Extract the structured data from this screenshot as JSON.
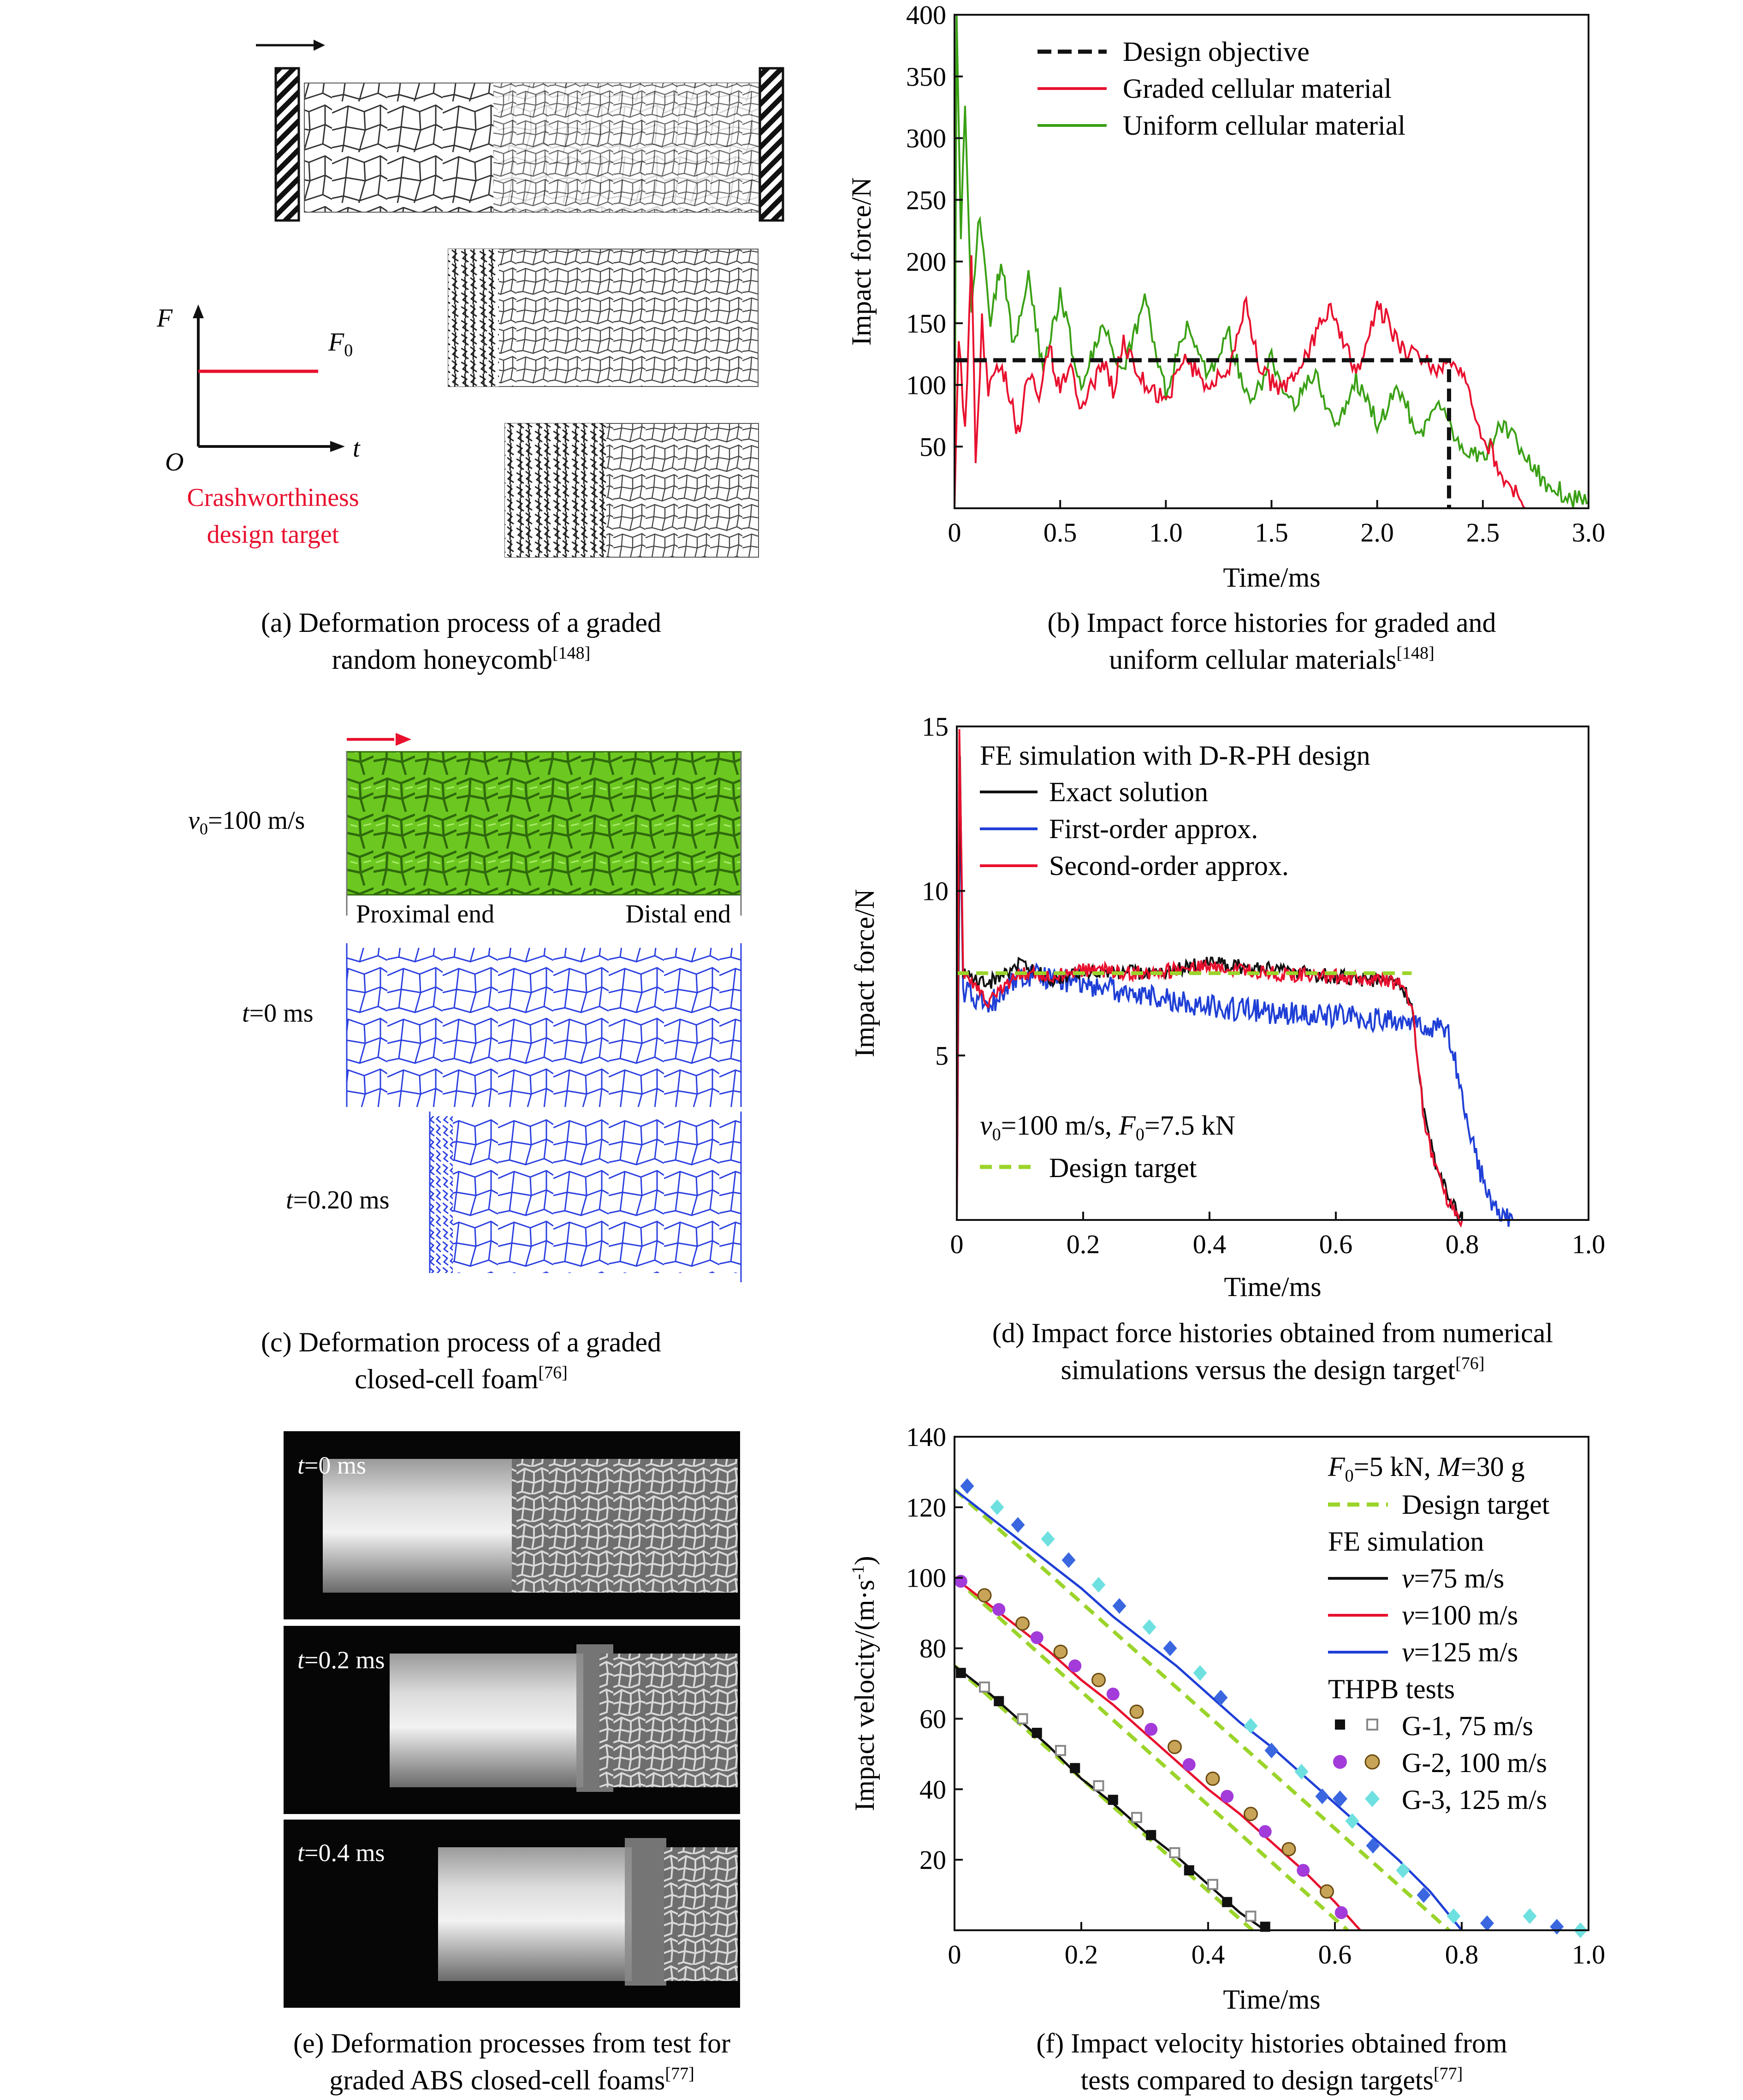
{
  "colors": {
    "red": "#e8102e",
    "green": "#3aa015",
    "blue": "#1f3fd6",
    "black": "#111111",
    "lime": "#9bd42a",
    "cyan": "#6fe0e0",
    "violet": "#a23bd9",
    "royal": "#3a67e0",
    "foam_green": "#6cc820",
    "cell_blue": "#2b3fe0"
  },
  "panel_a": {
    "axis_f": "F",
    "axis_o": "O",
    "axis_t": "t",
    "f0_label": "F",
    "f0_sub": "0",
    "target_line1": "Crashworthiness",
    "target_line2": "design target",
    "caption_line1": "(a) Deformation process of a graded",
    "caption_line2": "random honeycomb",
    "caption_ref": "[148]"
  },
  "panel_c": {
    "v0_label": "=100 m/s",
    "proximal": "Proximal end",
    "distal": "Distal end",
    "t0": "=0 ms",
    "t020": "=0.20 ms",
    "caption_line1": "(c) Deformation process of a graded",
    "caption_line2": "closed-cell foam",
    "caption_ref": "[76]"
  },
  "panel_e": {
    "frames": [
      "=0 ms",
      "=0.2 ms",
      "=0.4 ms"
    ],
    "caption_line1": "(e) Deformation processes  from test for",
    "caption_line2": "graded ABS closed-cell foams",
    "caption_ref": "[77]"
  },
  "chart_data": [
    {
      "id": "b",
      "type": "line",
      "xlabel": "Time/ms",
      "ylabel": "Impact force/N",
      "xlim": [
        0,
        3.0
      ],
      "ylim": [
        0,
        400
      ],
      "xticks": [
        "0",
        "0.5",
        "1.0",
        "1.5",
        "2.0",
        "2.5",
        "3.0"
      ],
      "yticks": [
        "50",
        "100",
        "150",
        "200",
        "250",
        "300",
        "350",
        "400"
      ],
      "legend_position": "top-right",
      "caption_line1": "(b) Impact force histories for graded and",
      "caption_line2": "uniform cellular materials",
      "caption_ref": "[148]",
      "series": [
        {
          "name": "Design objective",
          "color": "black",
          "dash": "dashed",
          "x": [
            0.0,
            2.34,
            2.34,
            2.34
          ],
          "y": [
            120,
            120,
            120,
            0
          ]
        },
        {
          "name": "Graded cellular material",
          "color": "red",
          "x": [
            0.0,
            0.02,
            0.05,
            0.08,
            0.1,
            0.13,
            0.16,
            0.2,
            0.25,
            0.3,
            0.35,
            0.4,
            0.45,
            0.5,
            0.55,
            0.6,
            0.7,
            0.75,
            0.8,
            0.9,
            1.0,
            1.1,
            1.2,
            1.3,
            1.38,
            1.45,
            1.55,
            1.65,
            1.78,
            1.9,
            2.0,
            2.05,
            2.1,
            2.2,
            2.3,
            2.36,
            2.42,
            2.5,
            2.6,
            2.7
          ],
          "y": [
            0,
            140,
            60,
            210,
            40,
            150,
            90,
            120,
            100,
            60,
            110,
            90,
            130,
            95,
            120,
            80,
            120,
            95,
            135,
            100,
            90,
            120,
            100,
            110,
            165,
            110,
            95,
            120,
            165,
            110,
            160,
            155,
            130,
            120,
            110,
            125,
            100,
            60,
            25,
            0
          ]
        },
        {
          "name": "Uniform cellular material",
          "color": "green",
          "x": [
            0.0,
            0.01,
            0.03,
            0.05,
            0.08,
            0.12,
            0.17,
            0.22,
            0.28,
            0.35,
            0.42,
            0.5,
            0.6,
            0.7,
            0.8,
            0.9,
            1.0,
            1.1,
            1.2,
            1.3,
            1.4,
            1.5,
            1.6,
            1.7,
            1.8,
            1.9,
            2.0,
            2.1,
            2.2,
            2.3,
            2.4,
            2.5,
            2.6,
            2.7,
            2.8,
            2.9,
            3.0
          ],
          "y": [
            0,
            400,
            220,
            330,
            160,
            240,
            150,
            200,
            130,
            190,
            110,
            175,
            95,
            150,
            110,
            170,
            95,
            150,
            105,
            140,
            80,
            120,
            85,
            110,
            65,
            105,
            70,
            95,
            60,
            85,
            50,
            40,
            70,
            40,
            20,
            10,
            5
          ]
        }
      ]
    },
    {
      "id": "d",
      "type": "line",
      "title": "FE simulation with D-R-PH design",
      "xlabel": "Time/ms",
      "ylabel": "Impact force/N",
      "xlim": [
        0,
        1.0
      ],
      "ylim": [
        0,
        15
      ],
      "xticks": [
        "0",
        "0.2",
        "0.4",
        "0.6",
        "0.8",
        "1.0"
      ],
      "yticks": [
        "5",
        "10",
        "15"
      ],
      "legend_position": "top-left",
      "annotation": "=100 m/s, ",
      "annotation_tail": "=7.5 kN",
      "caption_line1": "(d) Impact force histories obtained from numerical",
      "caption_line2": "simulations versus the design target",
      "caption_ref": "[76]",
      "series": [
        {
          "name": "Exact solution",
          "color": "black",
          "x": [
            0.0,
            0.005,
            0.01,
            0.05,
            0.1,
            0.15,
            0.2,
            0.3,
            0.4,
            0.5,
            0.6,
            0.7,
            0.72,
            0.74,
            0.76,
            0.78,
            0.8
          ],
          "y": [
            0,
            14,
            7.5,
            7.2,
            7.8,
            7.3,
            7.6,
            7.5,
            7.8,
            7.6,
            7.4,
            7.2,
            6.6,
            3.2,
            1.6,
            0.6,
            0
          ]
        },
        {
          "name": "First-order approx.",
          "color": "blue",
          "x": [
            0.0,
            0.005,
            0.01,
            0.05,
            0.1,
            0.2,
            0.3,
            0.4,
            0.5,
            0.6,
            0.7,
            0.77,
            0.78,
            0.8,
            0.82,
            0.84,
            0.86,
            0.88
          ],
          "y": [
            0,
            13,
            7.0,
            6.5,
            7.5,
            7.2,
            6.8,
            6.5,
            6.3,
            6.2,
            6.0,
            5.8,
            5.6,
            3.8,
            2.0,
            0.8,
            0.2,
            0
          ]
        },
        {
          "name": "Second-order approx.",
          "color": "red",
          "x": [
            0.0,
            0.004,
            0.01,
            0.05,
            0.1,
            0.15,
            0.2,
            0.3,
            0.4,
            0.5,
            0.6,
            0.7,
            0.72,
            0.74,
            0.76,
            0.78,
            0.8
          ],
          "y": [
            0,
            15,
            7.5,
            6.6,
            7.5,
            7.4,
            7.6,
            7.5,
            7.7,
            7.5,
            7.4,
            7.2,
            6.5,
            3.0,
            1.4,
            0.5,
            0
          ]
        },
        {
          "name": "Design target",
          "color": "lime",
          "dash": "dashed",
          "x": [
            0.0,
            0.72
          ],
          "y": [
            7.5,
            7.5
          ]
        }
      ]
    },
    {
      "id": "f",
      "type": "line",
      "title": "=5 kN, ",
      "title_tail": "=30 g",
      "xlabel": "Time/ms",
      "ylabel": "Impact velocity/(m·s",
      "ylabel_sup": "-1",
      "ylabel_tail": ")",
      "xlim": [
        0,
        1.0
      ],
      "ylim": [
        0,
        140
      ],
      "xticks": [
        "0",
        "0.2",
        "0.4",
        "0.6",
        "0.8",
        "1.0"
      ],
      "yticks": [
        "20",
        "40",
        "60",
        "80",
        "100",
        "120",
        "140"
      ],
      "legend_position": "top-right",
      "legend_groups": [
        "FE simulation",
        "THPB tests"
      ],
      "caption_line1": "(f) Impact velocity histories obtained from",
      "caption_line2": "tests compared to design targets",
      "caption_ref": "[77]",
      "series": [
        {
          "name": "Design target",
          "color": "lime",
          "dash": "dashed",
          "lines": [
            {
              "x": [
                0.0,
                0.47
              ],
              "y": [
                75,
                0
              ]
            },
            {
              "x": [
                0.0,
                0.62
              ],
              "y": [
                100,
                0
              ]
            },
            {
              "x": [
                0.0,
                0.78
              ],
              "y": [
                125,
                0
              ]
            }
          ]
        },
        {
          "name": "=75 m/s",
          "color": "black",
          "x": [
            0.0,
            0.05,
            0.1,
            0.15,
            0.2,
            0.25,
            0.3,
            0.35,
            0.4,
            0.45,
            0.49
          ],
          "y": [
            75,
            68,
            60,
            52,
            43,
            36,
            28,
            21,
            13,
            5,
            0
          ]
        },
        {
          "name": "=100 m/s",
          "color": "red",
          "x": [
            0.0,
            0.05,
            0.1,
            0.15,
            0.2,
            0.25,
            0.3,
            0.35,
            0.4,
            0.45,
            0.5,
            0.55,
            0.6,
            0.64
          ],
          "y": [
            100,
            93,
            86,
            79,
            71,
            64,
            56,
            48,
            40,
            33,
            25,
            17,
            8,
            0
          ]
        },
        {
          "name": "=125 m/s",
          "color": "blue",
          "x": [
            0.0,
            0.05,
            0.1,
            0.15,
            0.2,
            0.25,
            0.3,
            0.35,
            0.4,
            0.45,
            0.5,
            0.55,
            0.6,
            0.65,
            0.7,
            0.75,
            0.8
          ],
          "y": [
            125,
            118,
            111,
            104,
            97,
            89,
            82,
            75,
            67,
            59,
            52,
            44,
            36,
            28,
            20,
            11,
            0
          ]
        },
        {
          "name": "G-1, 75 m/s",
          "markers": [
            "black",
            "gray"
          ],
          "shape": "square",
          "x": [
            0.01,
            0.04,
            0.07,
            0.1,
            0.13,
            0.16,
            0.19,
            0.22,
            0.25,
            0.28,
            0.31,
            0.34,
            0.37,
            0.4,
            0.43,
            0.46,
            0.49
          ],
          "y": [
            73,
            69,
            65,
            60,
            56,
            51,
            46,
            41,
            37,
            32,
            27,
            22,
            17,
            13,
            8,
            4,
            1
          ]
        },
        {
          "name": "G-2, 100 m/s",
          "markers": [
            "violet",
            "tan"
          ],
          "shape": "circle",
          "x": [
            0.01,
            0.04,
            0.07,
            0.1,
            0.13,
            0.16,
            0.19,
            0.22,
            0.25,
            0.28,
            0.31,
            0.34,
            0.37,
            0.4,
            0.43,
            0.46,
            0.49,
            0.52,
            0.55,
            0.58,
            0.61
          ],
          "y": [
            99,
            95,
            91,
            87,
            83,
            79,
            75,
            71,
            67,
            62,
            57,
            52,
            47,
            43,
            38,
            33,
            28,
            23,
            17,
            11,
            5
          ]
        },
        {
          "name": "G-3, 125 m/s",
          "markers": [
            "royal",
            "cyan"
          ],
          "shape": "diamond",
          "x": [
            0.02,
            0.06,
            0.1,
            0.14,
            0.18,
            0.22,
            0.26,
            0.3,
            0.34,
            0.38,
            0.42,
            0.46,
            0.5,
            0.54,
            0.58,
            0.62,
            0.66,
            0.7,
            0.74,
            0.78,
            0.84,
            0.9,
            0.95,
            0.98
          ],
          "y": [
            126,
            120,
            115,
            111,
            105,
            98,
            92,
            86,
            80,
            73,
            66,
            58,
            51,
            45,
            38,
            31,
            24,
            17,
            10,
            4,
            2,
            4,
            1,
            0
          ]
        }
      ]
    }
  ]
}
